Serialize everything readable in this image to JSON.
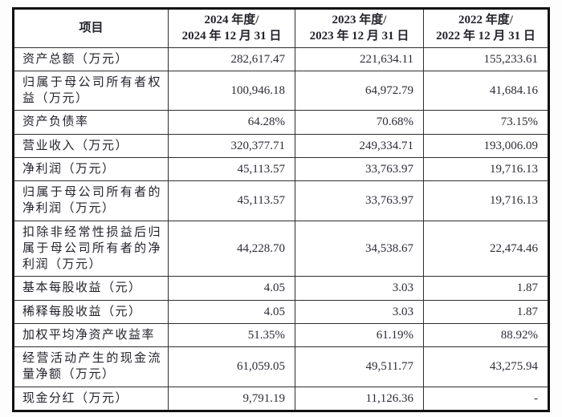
{
  "table": {
    "header": {
      "item_label": "项目",
      "periods": [
        {
          "line1": "2024 年度/",
          "line2": "2024 年 12 月 31 日"
        },
        {
          "line1": "2023 年度/",
          "line2": "2023 年 12 月 31 日"
        },
        {
          "line1": "2022 年度/",
          "line2": "2022 年 12 月 31 日"
        }
      ]
    },
    "rows": [
      {
        "label": "资产总额（万元）",
        "values": [
          "282,617.47",
          "221,634.11",
          "155,233.61"
        ]
      },
      {
        "label": "归属于母公司所有者权益（万元）",
        "values": [
          "100,946.18",
          "64,972.79",
          "41,684.16"
        ]
      },
      {
        "label": "资产负债率",
        "values": [
          "64.28%",
          "70.68%",
          "73.15%"
        ]
      },
      {
        "label": "营业收入（万元）",
        "values": [
          "320,377.71",
          "249,334.71",
          "193,006.09"
        ]
      },
      {
        "label": "净利润（万元）",
        "values": [
          "45,113.57",
          "33,763.97",
          "19,716.13"
        ]
      },
      {
        "label": "归属于母公司所有者的净利润（万元）",
        "values": [
          "45,113.57",
          "33,763.97",
          "19,716.13"
        ]
      },
      {
        "label": "扣除非经常性损益后归属于母公司所有者的净利润（万元）",
        "values": [
          "44,228.70",
          "34,538.67",
          "22,474.46"
        ]
      },
      {
        "label": "基本每股收益（元）",
        "values": [
          "4.05",
          "3.03",
          "1.87"
        ]
      },
      {
        "label": "稀释每股收益（元）",
        "values": [
          "4.05",
          "3.03",
          "1.87"
        ]
      },
      {
        "label": "加权平均净资产收益率",
        "values": [
          "51.35%",
          "61.19%",
          "88.92%"
        ]
      },
      {
        "label": "经营活动产生的现金流量净额（万元）",
        "values": [
          "61,059.05",
          "49,511.77",
          "43,275.94"
        ]
      },
      {
        "label": "现金分红（万元）",
        "values": [
          "9,791.19",
          "11,126.36",
          "-"
        ]
      }
    ]
  },
  "colors": {
    "text": "#23232b",
    "inner_border": "#2e2e2e",
    "outer_border": "#111111",
    "background": "#fdfdfd",
    "cell_background": "#ffffff"
  }
}
